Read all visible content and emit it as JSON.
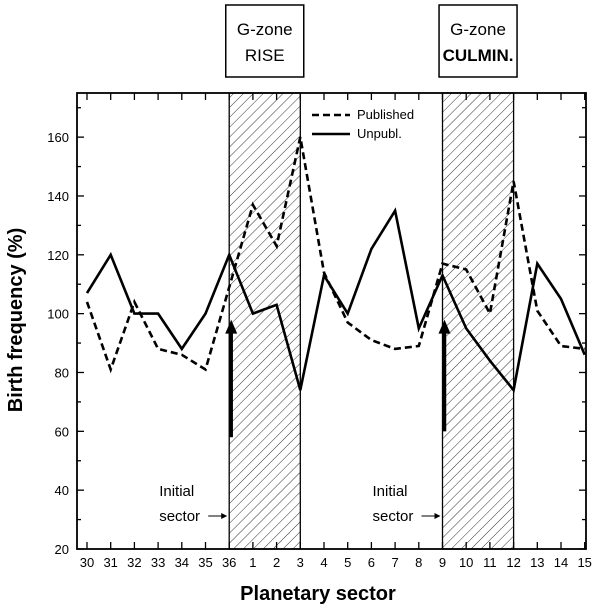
{
  "chart_data": {
    "type": "line",
    "categories": [
      "30",
      "31",
      "32",
      "33",
      "34",
      "35",
      "36",
      "1",
      "2",
      "3",
      "4",
      "5",
      "6",
      "7",
      "8",
      "9",
      "10",
      "11",
      "12",
      "13",
      "14",
      "15"
    ],
    "series": [
      {
        "name": "Published",
        "style": "dashed",
        "values": [
          104,
          81,
          104,
          88,
          86,
          81,
          109,
          137,
          123,
          160,
          114,
          97,
          91,
          88,
          89,
          117,
          115,
          100,
          145,
          101,
          89,
          88
        ]
      },
      {
        "name": "Unpubl.",
        "style": "solid",
        "values": [
          107,
          120,
          100,
          100,
          88,
          100,
          120,
          100,
          103,
          74,
          113,
          100,
          122,
          135,
          95,
          113,
          95,
          84,
          74,
          117,
          105,
          86
        ]
      }
    ],
    "xlabel": "Planetary sector",
    "ylabel": "Birth frequency (%)",
    "ylim": [
      20,
      175
    ],
    "yticks": [
      20,
      40,
      60,
      80,
      100,
      120,
      140,
      160
    ],
    "grid": false,
    "legend_position": "top-right",
    "zones": [
      {
        "title_line1": "G-zone",
        "title_line2": "RISE",
        "bold_line2": false,
        "start": "36",
        "end": "3",
        "annotation_line1": "Initial",
        "annotation_line2": "sector",
        "arrow_at": "36",
        "arrow_value": 58
      },
      {
        "title_line1": "G-zone",
        "title_line2": "CULMIN.",
        "bold_line2": true,
        "start": "9",
        "end": "12",
        "annotation_line1": "Initial",
        "annotation_line2": "sector",
        "arrow_at": "9",
        "arrow_value": 60
      }
    ],
    "colors": {
      "line": "#000000",
      "background": "#ffffff",
      "hatch": "#000000"
    }
  }
}
